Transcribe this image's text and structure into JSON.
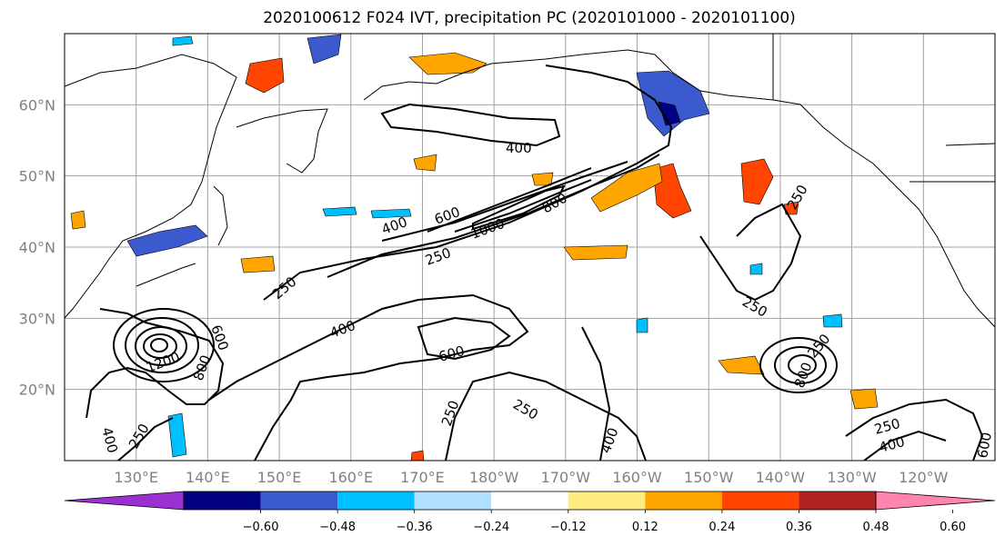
{
  "title": "2020100612 F024 IVT, precipitation PC (2020101000 - 2020101100)",
  "lat_labels": [
    "60°N",
    "50°N",
    "40°N",
    "30°N",
    "20°N"
  ],
  "lon_labels": [
    "130°E",
    "140°E",
    "150°E",
    "160°E",
    "170°E",
    "180°W",
    "170°W",
    "160°W",
    "150°W",
    "140°W",
    "130°W",
    "120°W"
  ],
  "map_extent": {
    "lon_min": 120,
    "lon_max": 250,
    "lat_min": 10,
    "lat_max": 70
  },
  "gridlines": true,
  "ivt_contour_labels": [
    "400",
    "600",
    "800",
    "1000",
    "1200",
    "250",
    "400",
    "600",
    "800",
    "250",
    "600",
    "250",
    "400",
    "250",
    "400",
    "250",
    "800",
    "250",
    "250",
    "400",
    "250",
    "400",
    "250",
    "600"
  ],
  "colorbar": {
    "ticks": [
      "−0.60",
      "−0.48",
      "−0.36",
      "−0.24",
      "−0.12",
      "0.12",
      "0.24",
      "0.36",
      "0.48",
      "0.60"
    ],
    "colors": [
      "#9b30d0",
      "#000080",
      "#3a5acd",
      "#00bfff",
      "#b0e0ff",
      "#ffffff",
      "#ffeb80",
      "#ffa500",
      "#ff4500",
      "#b22222",
      "#ff85b0"
    ]
  }
}
